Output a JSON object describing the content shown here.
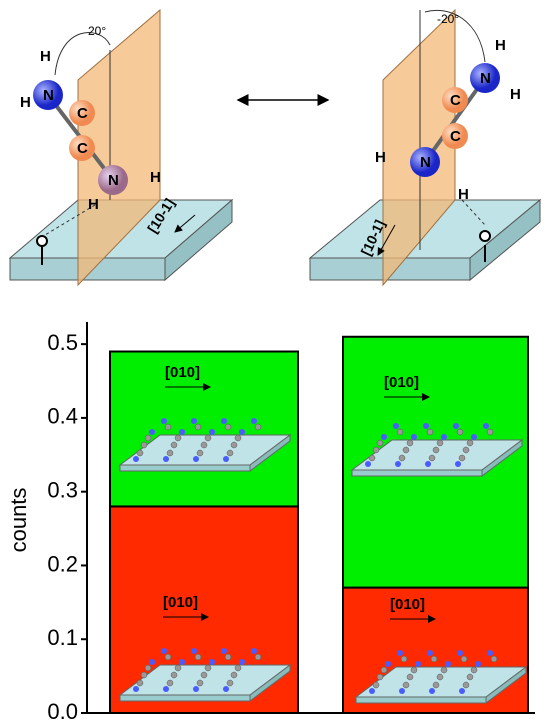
{
  "diagram": {
    "left": {
      "angle": "20°",
      "atoms": [
        "H",
        "N",
        "H",
        "C",
        "C",
        "N",
        "H",
        "H"
      ],
      "direction": "[10-1]"
    },
    "right": {
      "angle": "-20°",
      "atoms": [
        "H",
        "N",
        "H",
        "C",
        "C",
        "N",
        "H",
        "H"
      ],
      "direction": "[10-1]"
    }
  },
  "chart_data": {
    "type": "bar",
    "stacked": true,
    "y_label": "counts",
    "categories": [
      null,
      null
    ],
    "series": [
      {
        "color": "#ff2a00",
        "values": [
          0.28,
          0.17
        ]
      },
      {
        "color": "#00ee00",
        "values": [
          0.21,
          0.34
        ]
      }
    ],
    "ylim": [
      0,
      0.53
    ],
    "yticks": [
      {
        "value": 0,
        "label": "0.0"
      },
      0.1,
      0.2,
      0.3,
      0.4,
      0.5
    ],
    "annotations": [
      "[010]",
      "[010]",
      "[010]",
      "[010]"
    ]
  }
}
